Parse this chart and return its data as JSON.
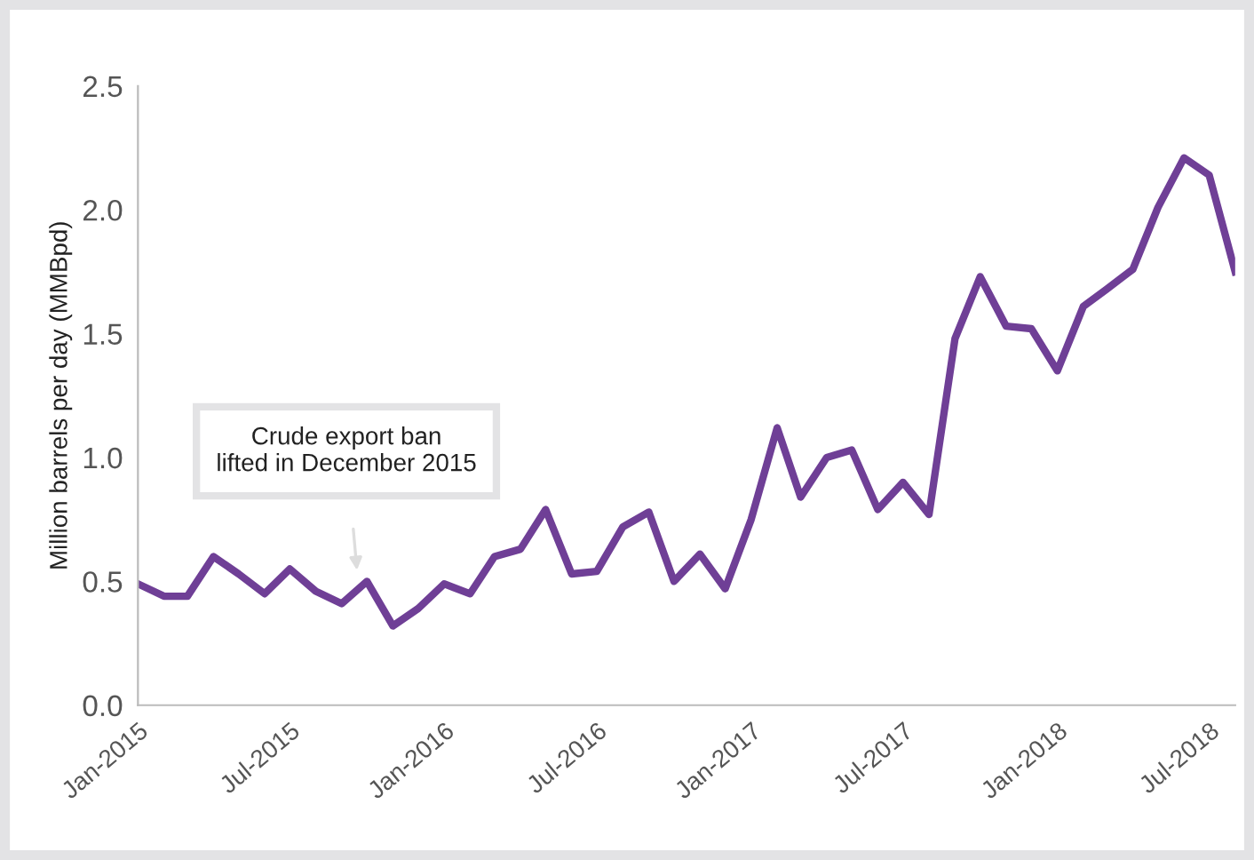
{
  "chart_data": {
    "type": "line",
    "ylabel": "Million barrels per day (MMBpd)",
    "x": [
      "2015-01",
      "2015-02",
      "2015-03",
      "2015-04",
      "2015-05",
      "2015-06",
      "2015-07",
      "2015-08",
      "2015-09",
      "2015-10",
      "2015-11",
      "2015-12",
      "2016-01",
      "2016-02",
      "2016-03",
      "2016-04",
      "2016-05",
      "2016-06",
      "2016-07",
      "2016-08",
      "2016-09",
      "2016-10",
      "2016-11",
      "2016-12",
      "2017-01",
      "2017-02",
      "2017-03",
      "2017-04",
      "2017-05",
      "2017-06",
      "2017-07",
      "2017-08",
      "2017-09",
      "2017-10",
      "2017-11",
      "2017-12",
      "2018-01",
      "2018-02",
      "2018-03",
      "2018-04",
      "2018-05",
      "2018-06",
      "2018-07",
      "2018-08"
    ],
    "series": [
      {
        "color": "#6f3f96",
        "values": [
          0.49,
          0.44,
          0.44,
          0.6,
          0.53,
          0.45,
          0.55,
          0.46,
          0.41,
          0.5,
          0.32,
          0.39,
          0.49,
          0.45,
          0.6,
          0.63,
          0.79,
          0.53,
          0.54,
          0.72,
          0.78,
          0.5,
          0.61,
          0.47,
          0.75,
          1.12,
          0.84,
          1.0,
          1.03,
          0.79,
          0.9,
          0.77,
          1.48,
          1.73,
          1.53,
          1.52,
          1.35,
          1.61,
          1.68,
          1.76,
          2.01,
          2.21,
          2.14,
          1.75
        ]
      }
    ],
    "xlim": [
      "2015-01",
      "2018-08"
    ],
    "xticks": [
      {
        "value": "2015-01",
        "label": "Jan-2015"
      },
      {
        "value": "2015-07",
        "label": "Jul-2015"
      },
      {
        "value": "2016-01",
        "label": "Jan-2016"
      },
      {
        "value": "2016-07",
        "label": "Jul-2016"
      },
      {
        "value": "2017-01",
        "label": "Jan-2017"
      },
      {
        "value": "2017-07",
        "label": "Jul-2017"
      },
      {
        "value": "2018-01",
        "label": "Jan-2018"
      },
      {
        "value": "2018-07",
        "label": "Jul-2018"
      }
    ],
    "ylim": [
      0,
      2.5
    ],
    "yticks": [
      {
        "value": 0,
        "label": "0.0"
      },
      {
        "value": 0.5,
        "label": "0.5"
      },
      {
        "value": 1,
        "label": "1.0"
      },
      {
        "value": 1.5,
        "label": "1.5"
      },
      {
        "value": 2,
        "label": "2.0"
      },
      {
        "value": 2.5,
        "label": "2.5"
      }
    ],
    "annotations": [
      "Crude export ban\nlifted in December 2015"
    ],
    "grid": false,
    "legend": false,
    "marker": "none",
    "line_style": "solid"
  }
}
